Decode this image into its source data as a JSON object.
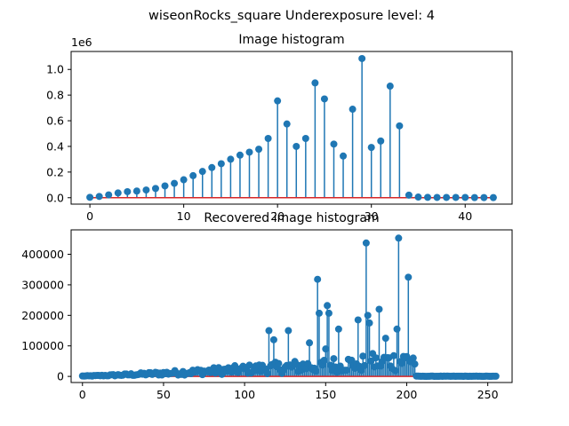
{
  "suptitle": "wiseonRocks_square Underexposure level: 4",
  "chart_data": [
    {
      "type": "stem",
      "title": "Image histogram",
      "xlabel": "",
      "ylabel": "",
      "offset_text": "1e6",
      "xlim": [
        -2,
        45
      ],
      "ylim": [
        -50000,
        1140000
      ],
      "xticks": [
        0,
        10,
        20,
        30,
        40
      ],
      "yticks": [
        0,
        200000,
        400000,
        600000,
        800000,
        1000000
      ],
      "ytick_labels": [
        "0.0",
        "0.2",
        "0.4",
        "0.6",
        "0.8",
        "1.0"
      ],
      "marker_color": "#1f77b4",
      "baseline_color": "#d62728",
      "x": [
        0,
        1,
        2,
        3,
        4,
        5,
        6,
        7,
        8,
        9,
        10,
        11,
        12,
        13,
        14,
        15,
        16,
        17,
        18,
        19,
        20,
        21,
        22,
        23,
        24,
        25,
        26,
        27,
        28,
        29,
        30,
        31,
        32,
        33,
        34,
        35,
        36,
        37,
        38,
        39,
        40,
        41,
        42,
        43
      ],
      "values": [
        3000,
        10000,
        22000,
        37000,
        47000,
        52000,
        60000,
        72000,
        92000,
        112000,
        140000,
        172000,
        205000,
        235000,
        265000,
        300000,
        332000,
        355000,
        378000,
        462000,
        755000,
        575000,
        400000,
        462000,
        895000,
        770000,
        418000,
        325000,
        690000,
        1085000,
        392000,
        442000,
        870000,
        560000,
        20000,
        5000,
        3000,
        2000,
        2000,
        2000,
        2000,
        1000,
        1000,
        1000
      ]
    },
    {
      "type": "stem",
      "title": "Recovered image histogram",
      "xlabel": "",
      "ylabel": "",
      "xlim": [
        -7,
        265
      ],
      "ylim": [
        -20000,
        480000
      ],
      "xticks": [
        0,
        50,
        100,
        150,
        200,
        250
      ],
      "yticks": [
        0,
        100000,
        200000,
        300000,
        400000
      ],
      "ytick_labels": [
        "0",
        "100000",
        "200000",
        "300000",
        "400000"
      ],
      "marker_color": "#1f77b4",
      "baseline_color": "#d62728",
      "peaks": {
        "115": 150000,
        "118": 120000,
        "127": 150000,
        "140": 110000,
        "145": 318000,
        "146": 207000,
        "150": 90000,
        "151": 232000,
        "152": 207000,
        "158": 155000,
        "170": 185000,
        "175": 437000,
        "176": 200000,
        "177": 175000,
        "183": 220000,
        "187": 125000,
        "194": 155000,
        "195": 453000,
        "200": 65000,
        "201": 325000
      },
      "note_values": "values for x=0..255 follow a rising envelope from ~1000 to ~90000, peaks listed above, then near-zero after 205"
    }
  ]
}
